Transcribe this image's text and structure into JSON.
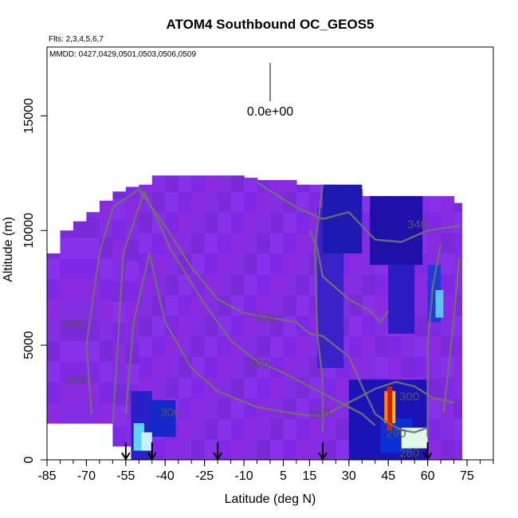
{
  "chart_data": {
    "type": "heatmap",
    "title": "ATOM4 Southbound OC_GEOS5",
    "subtitle_flights": "Flts: 2,3,4,5,6,7",
    "subtitle_dates": "MMDD: 0427,0429,0501,0503,0506,0509",
    "xlabel": "Latitude (deg N)",
    "ylabel": "Altitude (m)",
    "xlim": [
      -85,
      85
    ],
    "ylim": [
      0,
      18000
    ],
    "x_ticks": [
      -85,
      -70,
      -55,
      -40,
      -25,
      -10,
      5,
      15,
      30,
      45,
      60,
      75
    ],
    "y_ticks": [
      0,
      5000,
      10000,
      15000
    ],
    "colorbar_label": "0.0e+00",
    "flight_markers_lat": [
      -55,
      -45,
      -20,
      20,
      60
    ],
    "contour_labels": [
      {
        "text": "340",
        "lat": 56,
        "alt": 10300
      },
      {
        "text": "330",
        "lat": -2,
        "alt": 6200
      },
      {
        "text": "320",
        "lat": -4,
        "alt": 4200
      },
      {
        "text": "310",
        "lat": 19,
        "alt": 2100
      },
      {
        "text": "300",
        "lat": 53,
        "alt": 2800
      },
      {
        "text": "300",
        "lat": -38,
        "alt": 2100
      },
      {
        "text": "290",
        "lat": -75,
        "alt": 6000
      },
      {
        "text": "290",
        "lat": 48,
        "alt": 1200
      },
      {
        "text": "280",
        "lat": -74,
        "alt": 3500
      },
      {
        "text": "280",
        "lat": 53,
        "alt": 350
      }
    ],
    "grid": false
  }
}
